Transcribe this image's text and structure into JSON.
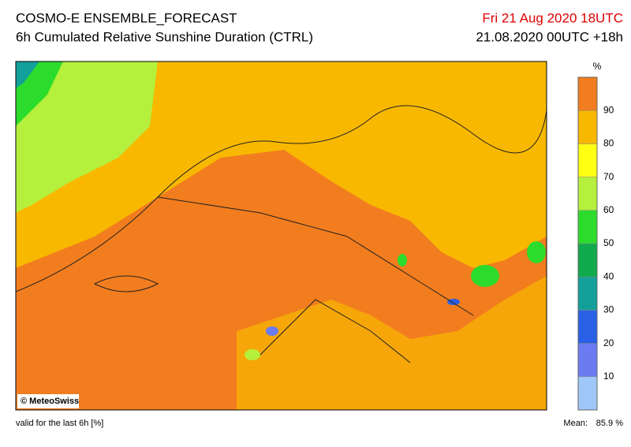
{
  "header": {
    "title": "COSMO-E ENSEMBLE_FORECAST",
    "subtitle": "6h Cumulated Relative Sunshine Duration (CTRL)",
    "valid_time": "Fri 21 Aug 2020 18UTC",
    "run_time": "21.08.2020 00UTC +18h"
  },
  "colorbar": {
    "unit": "%",
    "ticks": [
      10,
      20,
      30,
      40,
      50,
      60,
      70,
      80,
      90
    ],
    "colors": [
      "#9fc8f8",
      "#6b7cf2",
      "#2a60e6",
      "#13a09a",
      "#10ab4c",
      "#2cdc2c",
      "#b5f03c",
      "#ffff14",
      "#f8b800",
      "#f27d1e"
    ]
  },
  "map": {
    "copyright": "© MeteoSwiss"
  },
  "footer": {
    "note": "valid for the last 6h [%]",
    "mean_label": "Mean:",
    "mean_value": "85.9 %"
  }
}
